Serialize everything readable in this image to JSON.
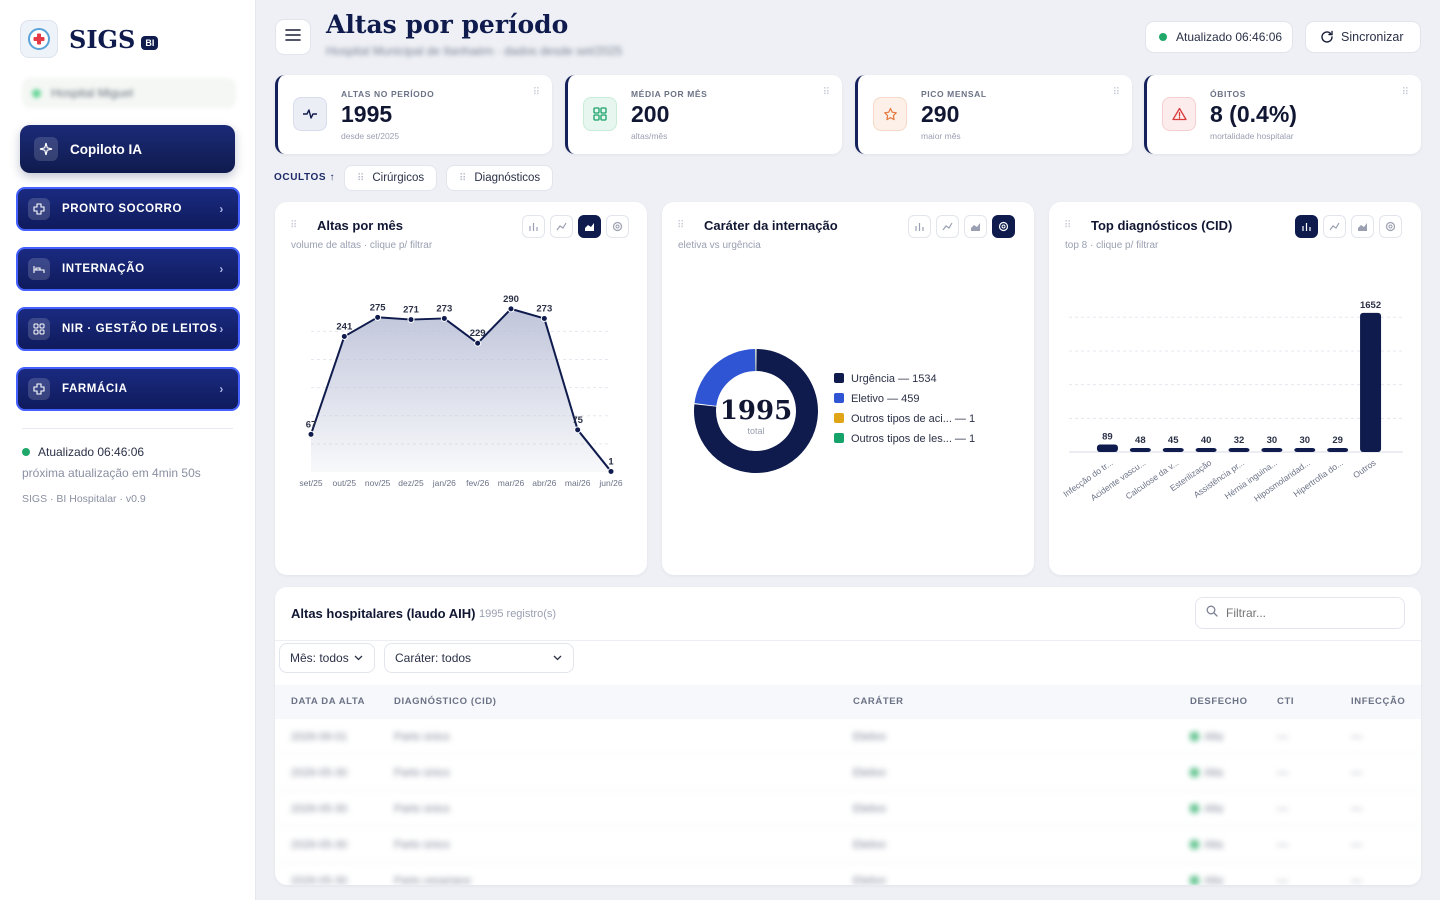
{
  "sidebar": {
    "brand": "SIGS",
    "brand_badge": "BI",
    "hospital_blurred": "Hospital Miguel",
    "copilot_label": "Copiloto IA",
    "nav": [
      {
        "label": "PRONTO SOCORRO",
        "icon": "plus-cross-icon"
      },
      {
        "label": "INTERNAÇÃO",
        "icon": "bed-icon"
      },
      {
        "label": "NIR · GESTÃO DE LEITOS",
        "icon": "grid-icon"
      },
      {
        "label": "FARMÁCIA",
        "icon": "plus-cross-icon"
      }
    ],
    "updated": "Atualizado 06:46:06",
    "next_update": "próxima atualização em 4min 50s",
    "version": "SIGS · BI Hospitalar · v0.9"
  },
  "header": {
    "title": "Altas por período",
    "subtitle_blurred": "Hospital Municipal de Itanhaém · dados desde set/2025",
    "updated_pill": "Atualizado 06:46:06",
    "sync_label": "Sincronizar"
  },
  "kpis": [
    {
      "label": "ALTAS NO PERÍODO",
      "value": "1995",
      "sub": "desde set/2025",
      "icon": "pulse-icon"
    },
    {
      "label": "MÉDIA POR MÊS",
      "value": "200",
      "sub": "altas/mês",
      "icon": "grid-icon"
    },
    {
      "label": "PICO MENSAL",
      "value": "290",
      "sub": "maior mês",
      "icon": "star-icon"
    },
    {
      "label": "ÓBITOS",
      "value": "8 (0.4%)",
      "sub": "mortalidade hospitalar",
      "icon": "warning-icon"
    }
  ],
  "hidden": {
    "label": "OCULTOS ↑",
    "chips": [
      "Cirúrgicos",
      "Diagnósticos"
    ]
  },
  "cards": [
    {
      "title": "Altas por mês",
      "subtitle": "volume de altas · clique p/ filtrar"
    },
    {
      "title": "Caráter da internação",
      "subtitle": "eletiva vs urgência"
    },
    {
      "title": "Top diagnósticos (CID)",
      "subtitle": "top 8 · clique p/ filtrar"
    }
  ],
  "chart_data": [
    {
      "type": "area",
      "title": "Altas por mês",
      "categories": [
        "set/25",
        "out/25",
        "nov/25",
        "dez/25",
        "jan/26",
        "fev/26",
        "mar/26",
        "abr/26",
        "mai/26",
        "jun/26"
      ],
      "values": [
        67,
        241,
        275,
        271,
        273,
        229,
        290,
        273,
        75,
        1
      ],
      "ylim": [
        0,
        320
      ],
      "grid": true,
      "colors": {
        "line": "#0f1b4d",
        "fill": "#b9bfd6"
      }
    },
    {
      "type": "pie",
      "title": "Caráter da internação",
      "center_value": "1995",
      "center_label": "total",
      "slices": [
        {
          "label": "Urgência",
          "value": 1534,
          "color": "#0f1b4d"
        },
        {
          "label": "Eletivo",
          "value": 459,
          "color": "#2f55d4"
        },
        {
          "label": "Outros tipos de aci...",
          "value": 1,
          "color": "#e0a516"
        },
        {
          "label": "Outros tipos de les...",
          "value": 1,
          "color": "#16a36a"
        }
      ]
    },
    {
      "type": "bar",
      "title": "Top diagnósticos (CID)",
      "categories": [
        "Infecção do tr...",
        "Acidente vascu...",
        "Calculose da v...",
        "Esterilização",
        "Assistência pr...",
        "Hérnia inguina...",
        "Hiposmolaridad...",
        "Hipertrofia do...",
        "Outros"
      ],
      "values": [
        89,
        48,
        45,
        40,
        32,
        30,
        30,
        29,
        1652
      ],
      "ylim": [
        0,
        1900
      ],
      "grid": true,
      "colors": {
        "bar": "#0f1b4d"
      }
    }
  ],
  "table": {
    "title": "Altas hospitalares (laudo AIH)",
    "count": "1995 registro(s)",
    "search_placeholder": "Filtrar...",
    "filters": [
      "Mês: todos",
      "Caráter: todos"
    ],
    "columns": [
      "DATA DA ALTA",
      "DIAGNÓSTICO (CID)",
      "CARÁTER",
      "DESFECHO",
      "CTI",
      "INFECÇÃO"
    ],
    "rows": [
      [
        "2026-06-01",
        "Parto único",
        "Eletivo",
        "Alta",
        "—",
        "—"
      ],
      [
        "2026-05-30",
        "Parto único",
        "Eletivo",
        "Alta",
        "—",
        "—"
      ],
      [
        "2026-05-30",
        "Parto único",
        "Eletivo",
        "Alta",
        "—",
        "—"
      ],
      [
        "2026-05-30",
        "Parto único",
        "Eletivo",
        "Alta",
        "—",
        "—"
      ],
      [
        "2026-05-30",
        "Parto cesariano",
        "Eletivo",
        "Alta",
        "—",
        "—"
      ]
    ]
  }
}
